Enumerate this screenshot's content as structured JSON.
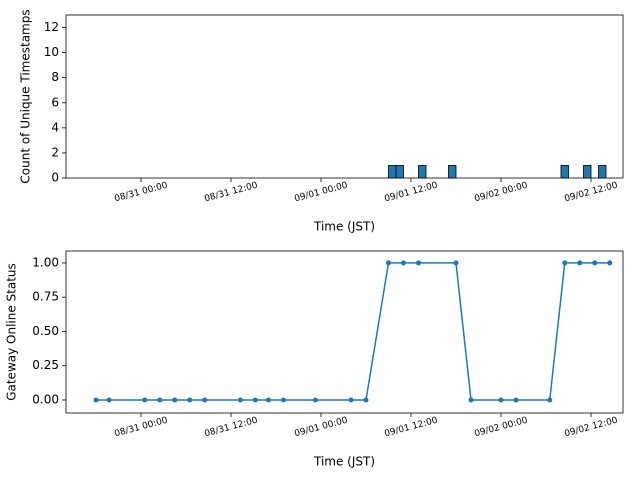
{
  "chart_data": [
    {
      "type": "bar",
      "y_label": "Count of Unique Timestamps",
      "x_label": "Time (JST)",
      "color": "#1f77b4",
      "x": [
        "09/01 09:00",
        "09/01 10:00",
        "09/01 13:00",
        "09/01 17:00",
        "09/02 08:00",
        "09/02 11:00",
        "09/02 13:00"
      ],
      "values": [
        1,
        1,
        1,
        1,
        1,
        1,
        1
      ],
      "xlim": [
        "08/30 14:00",
        "09/02 16:16"
      ],
      "xticks": [
        "08/31 00:00",
        "08/31 12:00",
        "09/01 00:00",
        "09/01 12:00",
        "09/02 00:00",
        "09/02 12:00"
      ],
      "ylim": [
        0,
        13
      ],
      "yticks": [
        0,
        2,
        4,
        6,
        8,
        10,
        12
      ]
    },
    {
      "type": "line",
      "y_label": "Gateway Online Status",
      "x_label": "Time (JST)",
      "color": "#1f77b4",
      "x": [
        "08/30 18:00",
        "08/30 19:45",
        "08/31 00:30",
        "08/31 02:30",
        "08/31 04:30",
        "08/31 06:30",
        "08/31 08:30",
        "08/31 13:15",
        "08/31 15:15",
        "08/31 17:00",
        "08/31 19:00",
        "08/31 23:15",
        "09/01 04:00",
        "09/01 06:00",
        "09/01 09:00",
        "09/01 11:00",
        "09/01 13:00",
        "09/01 18:00",
        "09/01 20:00",
        "09/02 00:00",
        "09/02 02:00",
        "09/02 06:30",
        "09/02 08:30",
        "09/02 10:30",
        "09/02 12:30",
        "09/02 14:30"
      ],
      "values": [
        0,
        0,
        0,
        0,
        0,
        0,
        0,
        0,
        0,
        0,
        0,
        0,
        0,
        0,
        1,
        1,
        1,
        1,
        0,
        0,
        0,
        0,
        1,
        1,
        1,
        1
      ],
      "xlim": [
        "08/30 14:00",
        "09/02 16:16"
      ],
      "xticks": [
        "08/31 00:00",
        "08/31 12:00",
        "09/01 00:00",
        "09/01 12:00",
        "09/02 00:00",
        "09/02 12:00"
      ],
      "ylim": [
        -0.095,
        1.087
      ],
      "yticks": [
        {
          "value": 0,
          "label": "0.00"
        },
        {
          "value": 0.25,
          "label": "0.25"
        },
        {
          "value": 0.5,
          "label": "0.50"
        },
        {
          "value": 0.75,
          "label": "0.75"
        },
        {
          "value": 1,
          "label": "1.00"
        }
      ]
    }
  ]
}
